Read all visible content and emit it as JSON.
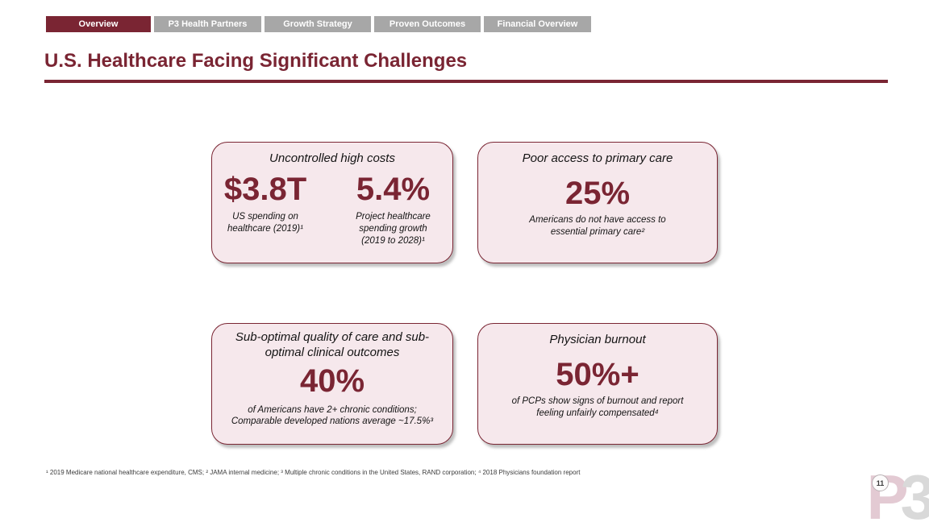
{
  "nav": {
    "tabs": [
      {
        "label": "Overview",
        "active": true
      },
      {
        "label": "P3 Health Partners",
        "active": false
      },
      {
        "label": "Growth Strategy",
        "active": false
      },
      {
        "label": "Proven Outcomes",
        "active": false
      },
      {
        "label": "Financial Overview",
        "active": false
      }
    ]
  },
  "title": "U.S. Healthcare Facing Significant Challenges",
  "cards": [
    {
      "heading": "Uncontrolled high costs",
      "stats": [
        {
          "value": "$3.8T",
          "caption": "US spending on\nhealthcare (2019)¹"
        },
        {
          "value": "5.4%",
          "caption": "Project healthcare\nspending growth\n(2019 to 2028)¹"
        }
      ]
    },
    {
      "heading": "Poor access to primary care",
      "stats": [
        {
          "value": "25%",
          "caption": "Americans do not have access to\nessential primary care²"
        }
      ]
    },
    {
      "heading": "Sub-optimal quality of care and sub-\noptimal clinical outcomes",
      "stats": [
        {
          "value": "40%",
          "caption": "of Americans have 2+ chronic conditions;\nComparable developed nations average ~17.5%³"
        }
      ]
    },
    {
      "heading": "Physician burnout",
      "stats": [
        {
          "value": "50%+",
          "caption": "of PCPs show signs of burnout and report\nfeeling unfairly compensated⁴"
        }
      ]
    }
  ],
  "footnote": "¹ 2019 Medicare national healthcare expenditure, CMS; ² JAMA internal medicine; ³ Multiple chronic conditions in the United States, RAND corporation; ⁴ 2018 Physicians foundation report",
  "page_number": "11",
  "logo": {
    "p": "P",
    "three": "3"
  },
  "colors": {
    "maroon": "#7a2533",
    "tab_gray": "#a7a7a7",
    "card_background": "#f6e8ec",
    "card_border": "#7a2533",
    "logo_p_pink": "#e3cad3",
    "logo_3_gray": "#d9d9d9"
  }
}
